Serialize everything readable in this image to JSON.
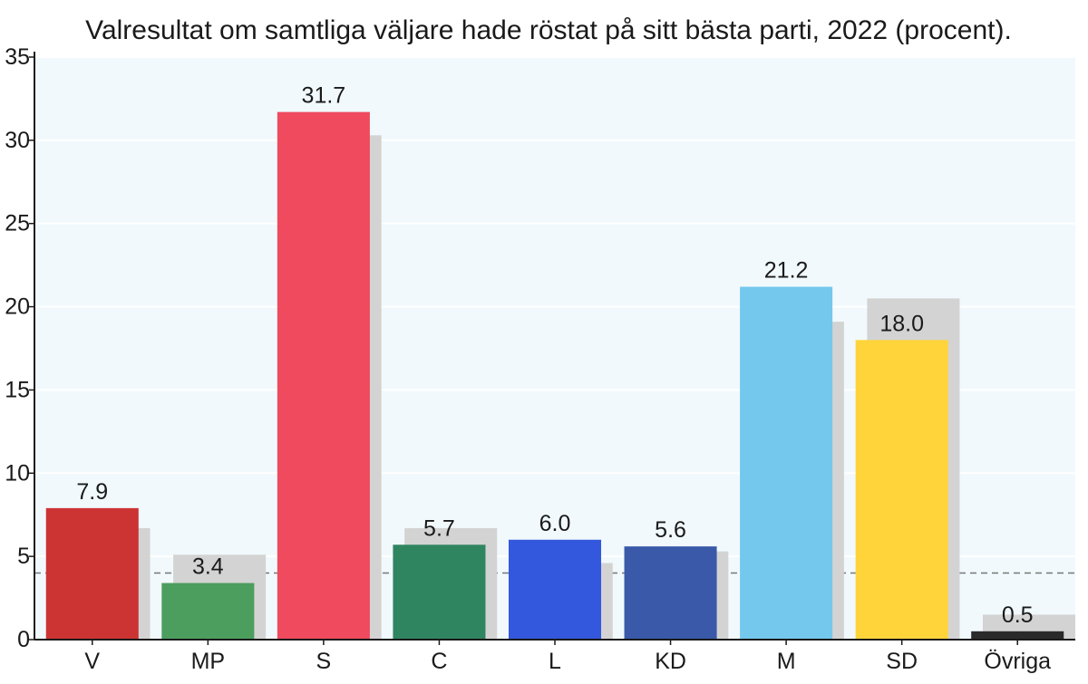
{
  "chart_data": {
    "type": "bar",
    "title": "Valresultat om samtliga väljare hade röstat på sitt bästa parti, 2022 (procent).",
    "xlabel": "",
    "ylabel": "",
    "ylim": [
      0,
      35
    ],
    "yticks": [
      0,
      5,
      10,
      15,
      20,
      25,
      30,
      35
    ],
    "grid": true,
    "reference_line": 4,
    "categories": [
      "V",
      "MP",
      "S",
      "C",
      "L",
      "KD",
      "M",
      "SD",
      "Övriga"
    ],
    "series": [
      {
        "values": [
          7.9,
          3.4,
          31.7,
          5.7,
          6.0,
          5.6,
          21.2,
          18.0,
          0.5
        ],
        "colors": [
          "#cc3333",
          "#4c9e5e",
          "#ef4a5e",
          "#2f8560",
          "#3358dd",
          "#3a5aa9",
          "#74c8ee",
          "#ffd43a",
          "#2a2a2a"
        ]
      },
      {
        "values": [
          6.7,
          5.1,
          30.3,
          6.7,
          4.6,
          5.3,
          19.1,
          20.5,
          1.5
        ],
        "color": "#d3d3d3"
      }
    ],
    "data_labels": [
      "7.9",
      "3.4",
      "31.7",
      "5.7",
      "6.0",
      "5.6",
      "21.2",
      "18.0",
      "0.5"
    ],
    "background_color": "#f1f9fd"
  }
}
